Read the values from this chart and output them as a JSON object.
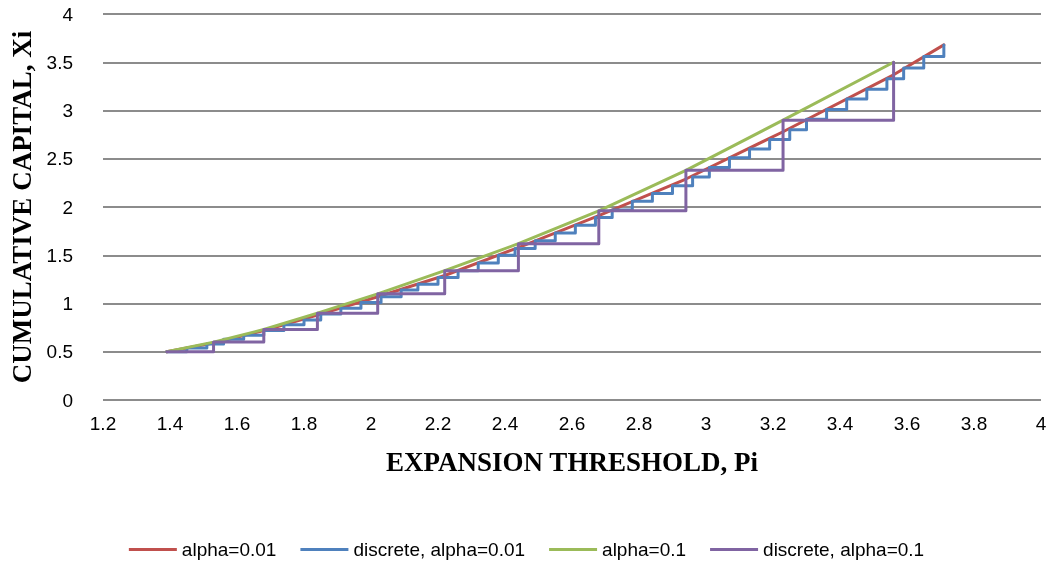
{
  "chart_data": {
    "type": "line",
    "xlabel": "EXPANSION THRESHOLD, Pi",
    "ylabel": "CUMULATIVE CAPITAL, Xi",
    "series": [
      {
        "name": "alpha=0.01",
        "type": "line",
        "color": "#c0504d",
        "x": [
          1.39,
          1.53,
          1.68,
          1.84,
          2.02,
          2.22,
          2.44,
          2.68,
          2.94,
          3.23,
          3.56,
          3.71
        ],
        "values": [
          0.5,
          0.59,
          0.72,
          0.88,
          1.07,
          1.29,
          1.58,
          1.91,
          2.29,
          2.78,
          3.37,
          3.68
        ]
      },
      {
        "name": "discrete, alpha=0.01",
        "type": "step",
        "color": "#4f81bd",
        "x": [
          1.39,
          1.45,
          1.51,
          1.56,
          1.62,
          1.68,
          1.74,
          1.8,
          1.85,
          1.91,
          1.97,
          2.03,
          2.09,
          2.14,
          2.2,
          2.26,
          2.32,
          2.38,
          2.43,
          2.49,
          2.55,
          2.61,
          2.67,
          2.72,
          2.78,
          2.84,
          2.9,
          2.96,
          3.01,
          3.07,
          3.13,
          3.19,
          3.25,
          3.3,
          3.36,
          3.42,
          3.48,
          3.54,
          3.59,
          3.65,
          3.71
        ],
        "values": [
          0.5,
          0.54,
          0.58,
          0.63,
          0.67,
          0.72,
          0.78,
          0.83,
          0.89,
          0.95,
          1.01,
          1.07,
          1.14,
          1.2,
          1.27,
          1.34,
          1.42,
          1.5,
          1.57,
          1.65,
          1.73,
          1.81,
          1.89,
          1.97,
          2.06,
          2.14,
          2.22,
          2.31,
          2.41,
          2.51,
          2.6,
          2.7,
          2.8,
          2.91,
          3.01,
          3.12,
          3.22,
          3.33,
          3.44,
          3.56,
          3.68
        ]
      },
      {
        "name": "alpha=0.1",
        "type": "line",
        "color": "#9bbb59",
        "x": [
          1.39,
          1.53,
          1.68,
          1.84,
          2.02,
          2.22,
          2.44,
          2.68,
          2.94,
          3.23,
          3.56
        ],
        "values": [
          0.5,
          0.6,
          0.73,
          0.9,
          1.1,
          1.34,
          1.62,
          1.96,
          2.38,
          2.9,
          3.5
        ]
      },
      {
        "name": "discrete, alpha=0.1",
        "type": "step",
        "color": "#8064a2",
        "x": [
          1.39,
          1.53,
          1.68,
          1.84,
          2.02,
          2.22,
          2.44,
          2.68,
          2.94,
          3.23,
          3.56
        ],
        "values": [
          0.5,
          0.6,
          0.73,
          0.9,
          1.1,
          1.34,
          1.62,
          1.96,
          2.38,
          2.9,
          3.5
        ]
      }
    ],
    "xlim": [
      1.2,
      4
    ],
    "xticks": [
      1.2,
      1.4,
      1.6,
      1.8,
      2,
      2.2,
      2.4,
      2.6,
      2.8,
      3,
      3.2,
      3.4,
      3.6,
      3.8,
      4
    ],
    "ylim": [
      0,
      4
    ],
    "yticks": [
      0,
      0.5,
      1,
      1.5,
      2,
      2.5,
      3,
      3.5,
      4
    ],
    "grid": "y",
    "legend": "bottom",
    "marker": "none",
    "line_style": "solid"
  }
}
